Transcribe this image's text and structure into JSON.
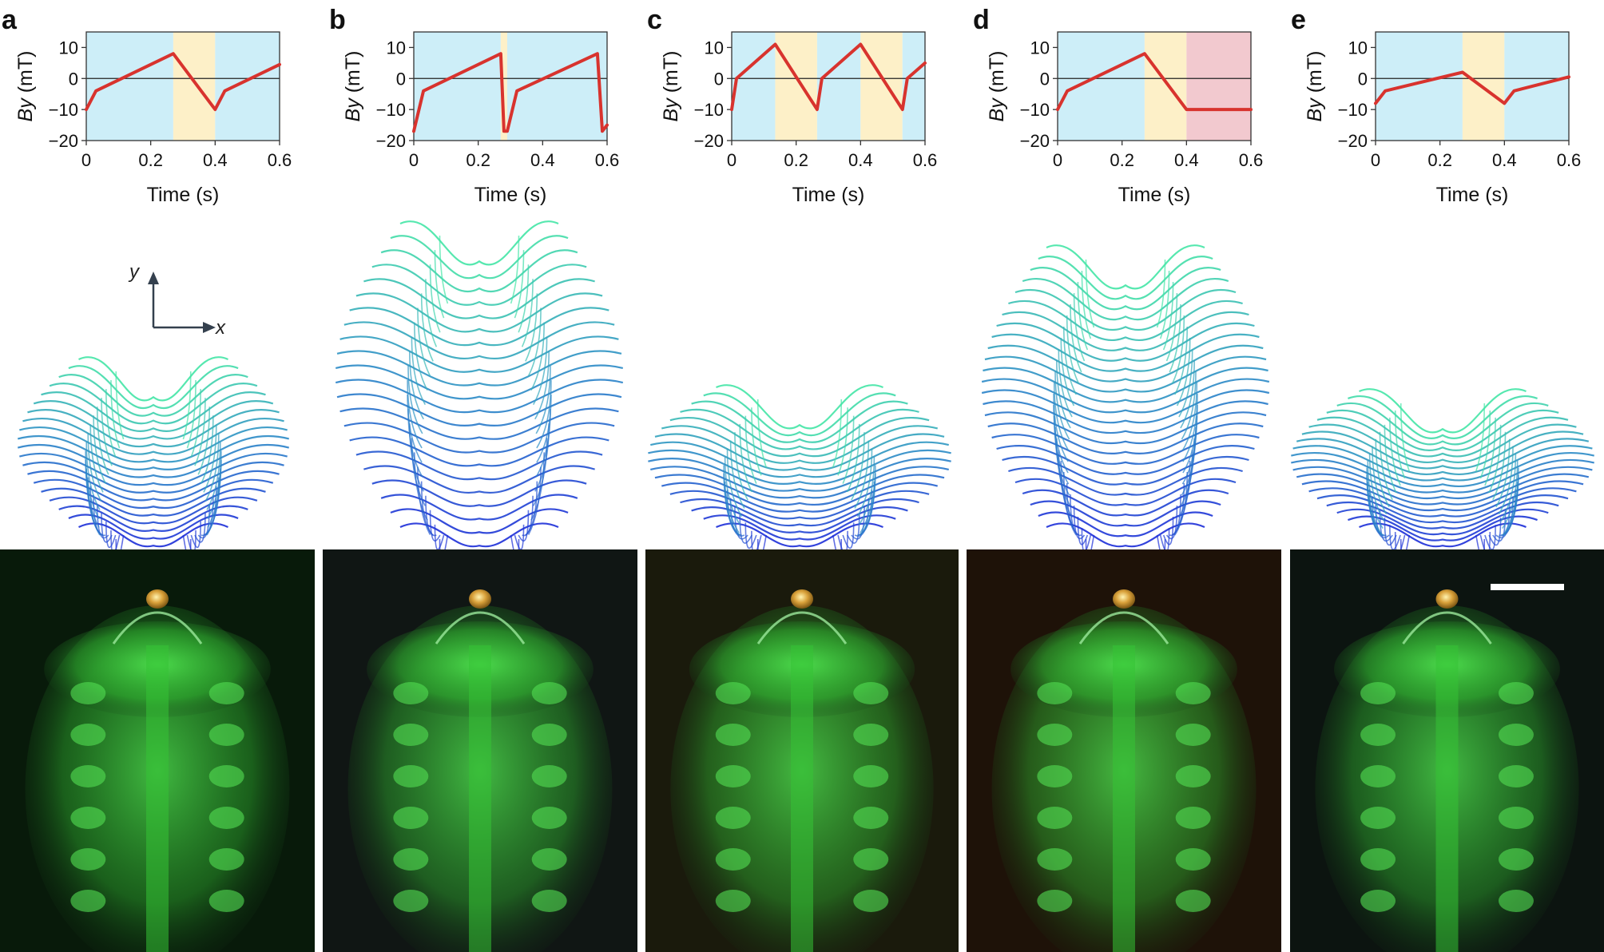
{
  "figure": {
    "coord_axes": {
      "y": "y",
      "x": "x"
    },
    "scale_bar_present": true
  },
  "colors": {
    "phase_blue": "#cdeef8",
    "phase_yellow": "#fdf0c8",
    "phase_pink": "#f2c9cf",
    "field_line": "#d8332e",
    "track_start": "#1d2fd8",
    "track_end": "#44e6a6",
    "photo_bg": "#0b1a0e",
    "dye_green": "#3bd23b"
  },
  "chart_data": [
    {
      "panel": "a",
      "type": "line",
      "xlabel": "Time (s)",
      "ylabel_italic": "By",
      "ylabel_unit": " (mT)",
      "xlim": [
        0,
        0.6
      ],
      "ylim": [
        -20,
        15
      ],
      "xticks": [
        "0",
        "0.2",
        "0.4",
        "0.6"
      ],
      "yticks": [
        "10",
        "0",
        "−10",
        "−20"
      ],
      "phases": [
        {
          "from": 0,
          "to": 0.27,
          "color": "blue"
        },
        {
          "from": 0.27,
          "to": 0.4,
          "color": "yellow"
        },
        {
          "from": 0.4,
          "to": 0.6,
          "color": "blue"
        }
      ],
      "x": [
        0,
        0.03,
        0.27,
        0.4,
        0.43,
        0.6
      ],
      "y": [
        -10,
        -4,
        8,
        -10,
        -4,
        4.5
      ]
    },
    {
      "panel": "b",
      "type": "line",
      "xlabel": "Time (s)",
      "ylabel_italic": "By",
      "ylabel_unit": " (mT)",
      "xlim": [
        0,
        0.6
      ],
      "ylim": [
        -20,
        15
      ],
      "xticks": [
        "0",
        "0.2",
        "0.4",
        "0.6"
      ],
      "yticks": [
        "10",
        "0",
        "−10",
        "−20"
      ],
      "phases": [
        {
          "from": 0,
          "to": 0.27,
          "color": "blue"
        },
        {
          "from": 0.27,
          "to": 0.29,
          "color": "yellow"
        },
        {
          "from": 0.29,
          "to": 0.6,
          "color": "blue"
        }
      ],
      "x": [
        0,
        0.03,
        0.27,
        0.28,
        0.29,
        0.32,
        0.57,
        0.585,
        0.6
      ],
      "y": [
        -17,
        -4,
        8,
        -17,
        -17,
        -4,
        8,
        -17,
        -15
      ]
    },
    {
      "panel": "c",
      "type": "line",
      "xlabel": "Time (s)",
      "ylabel_italic": "By",
      "ylabel_unit": " (mT)",
      "xlim": [
        0,
        0.6
      ],
      "ylim": [
        -20,
        15
      ],
      "xticks": [
        "0",
        "0.2",
        "0.4",
        "0.6"
      ],
      "yticks": [
        "10",
        "0",
        "−10",
        "−20"
      ],
      "phases": [
        {
          "from": 0,
          "to": 0.135,
          "color": "blue"
        },
        {
          "from": 0.135,
          "to": 0.265,
          "color": "yellow"
        },
        {
          "from": 0.265,
          "to": 0.4,
          "color": "blue"
        },
        {
          "from": 0.4,
          "to": 0.53,
          "color": "yellow"
        },
        {
          "from": 0.53,
          "to": 0.6,
          "color": "blue"
        }
      ],
      "x": [
        0,
        0.015,
        0.135,
        0.265,
        0.28,
        0.4,
        0.53,
        0.545,
        0.6
      ],
      "y": [
        -10,
        0,
        11,
        -10,
        0,
        11,
        -10,
        0,
        5
      ]
    },
    {
      "panel": "d",
      "type": "line",
      "xlabel": "Time (s)",
      "ylabel_italic": "By",
      "ylabel_unit": " (mT)",
      "xlim": [
        0,
        0.6
      ],
      "ylim": [
        -20,
        15
      ],
      "xticks": [
        "0",
        "0.2",
        "0.4",
        "0.6"
      ],
      "yticks": [
        "10",
        "0",
        "−10",
        "−20"
      ],
      "phases": [
        {
          "from": 0,
          "to": 0.27,
          "color": "blue"
        },
        {
          "from": 0.27,
          "to": 0.4,
          "color": "yellow"
        },
        {
          "from": 0.4,
          "to": 0.6,
          "color": "pink"
        }
      ],
      "x": [
        0,
        0.03,
        0.27,
        0.4,
        0.6
      ],
      "y": [
        -10,
        -4,
        8,
        -10,
        -10
      ]
    },
    {
      "panel": "e",
      "type": "line",
      "xlabel": "Time (s)",
      "ylabel_italic": "By",
      "ylabel_unit": " (mT)",
      "xlim": [
        0,
        0.6
      ],
      "ylim": [
        -20,
        15
      ],
      "xticks": [
        "0",
        "0.2",
        "0.4",
        "0.6"
      ],
      "yticks": [
        "10",
        "0",
        "−10",
        "−20"
      ],
      "phases": [
        {
          "from": 0,
          "to": 0.27,
          "color": "blue"
        },
        {
          "from": 0.27,
          "to": 0.4,
          "color": "yellow"
        },
        {
          "from": 0.4,
          "to": 0.6,
          "color": "blue"
        }
      ],
      "x": [
        0,
        0.03,
        0.27,
        0.4,
        0.43,
        0.6
      ],
      "y": [
        -8,
        -4,
        2,
        -8,
        -4,
        0.5
      ]
    }
  ]
}
